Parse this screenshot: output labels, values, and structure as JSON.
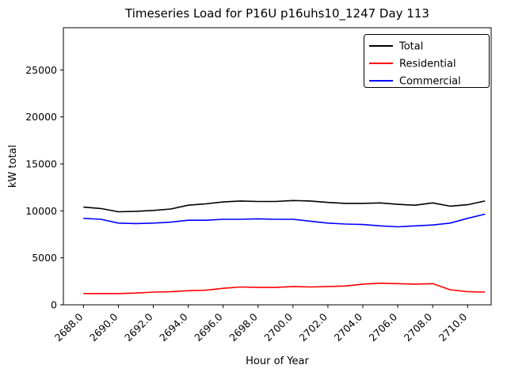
{
  "chart_data": {
    "type": "line",
    "title": "Timeseries Load for P16U p16uhs10_1247  Day 113",
    "xlabel": "Hour of Year",
    "ylabel": "kW total",
    "x": [
      2688,
      2689,
      2690,
      2691,
      2692,
      2693,
      2694,
      2695,
      2696,
      2697,
      2698,
      2699,
      2700,
      2701,
      2702,
      2703,
      2704,
      2705,
      2706,
      2707,
      2708,
      2709,
      2710,
      2711
    ],
    "series": [
      {
        "name": "Total",
        "color": "#000000",
        "values": [
          10400,
          10250,
          9900,
          9950,
          10050,
          10200,
          10600,
          10750,
          10950,
          11050,
          11000,
          11000,
          11100,
          11050,
          10900,
          10800,
          10800,
          10850,
          10700,
          10600,
          10850,
          10500,
          10650,
          11050
        ]
      },
      {
        "name": "Residential",
        "color": "#ff0000",
        "values": [
          1200,
          1200,
          1200,
          1250,
          1350,
          1400,
          1500,
          1550,
          1750,
          1900,
          1850,
          1850,
          1950,
          1900,
          1950,
          2000,
          2200,
          2300,
          2250,
          2200,
          2250,
          1600,
          1400,
          1350
        ]
      },
      {
        "name": "Commercial",
        "color": "#0000ff",
        "values": [
          9200,
          9100,
          8700,
          8650,
          8700,
          8800,
          9000,
          9000,
          9100,
          9100,
          9150,
          9100,
          9100,
          8900,
          8700,
          8600,
          8550,
          8400,
          8300,
          8400,
          8500,
          8700,
          9200,
          9650
        ]
      }
    ],
    "xticks": {
      "values": [
        2688,
        2690,
        2692,
        2694,
        2696,
        2698,
        2700,
        2702,
        2704,
        2706,
        2708,
        2710
      ],
      "labels": [
        "2688.0",
        "2690.0",
        "2692.0",
        "2694.0",
        "2696.0",
        "2698.0",
        "2700.0",
        "2702.0",
        "2704.0",
        "2706.0",
        "2708.0",
        "2710.0"
      ]
    },
    "yticks": {
      "values": [
        0,
        5000,
        10000,
        15000,
        20000,
        25000
      ],
      "labels": [
        "0",
        "5000",
        "10000",
        "15000",
        "20000",
        "25000"
      ]
    },
    "xlim": [
      2686.85,
      2711.35
    ],
    "ylim": [
      0,
      29500
    ],
    "legend_position": "upper right",
    "grid": false
  }
}
